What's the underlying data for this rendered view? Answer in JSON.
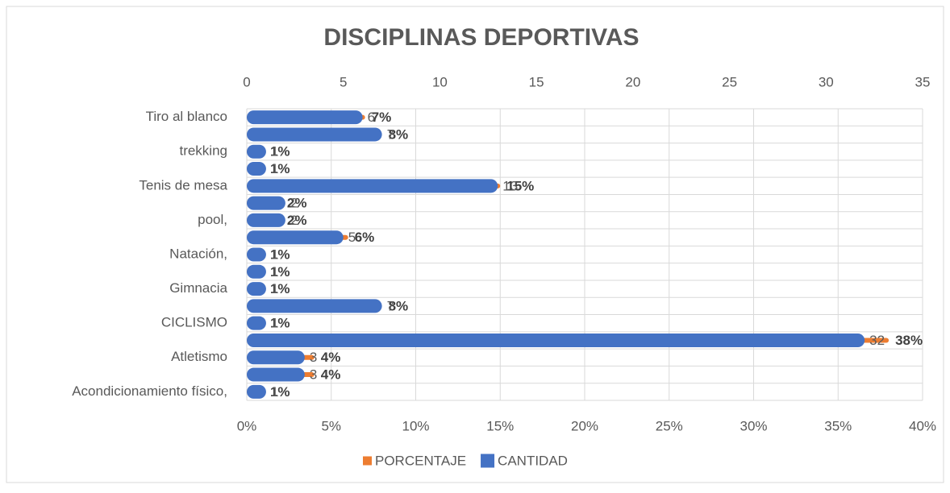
{
  "chart_data": {
    "type": "bar",
    "orientation": "horizontal",
    "title": "DISCIPLINAS DEPORTIVAS",
    "categories": [
      "Tiro al blanco",
      null,
      "trekking",
      null,
      "Tenis de mesa",
      null,
      "pool,",
      null,
      "Natación,",
      null,
      "Gimnacia",
      null,
      "CICLISMO",
      null,
      "Atletismo",
      null,
      "Acondicionamiento físico,"
    ],
    "series": [
      {
        "name": "PORCENTAJE",
        "color": "#ed7d31",
        "axis": "x",
        "values": [
          7,
          8,
          1,
          1,
          15,
          2,
          2,
          6,
          1,
          1,
          1,
          8,
          1,
          38,
          4,
          4,
          1
        ],
        "value_labels": [
          "7%",
          "8%",
          "1%",
          "1%",
          "15%",
          "2%",
          "2%",
          "6%",
          "1%",
          "1%",
          "1%",
          "8%",
          "1%",
          "38%",
          "4%",
          "4%",
          "1%"
        ]
      },
      {
        "name": "CANTIDAD",
        "color": "#4472c4",
        "axis": "x2",
        "values": [
          6,
          7,
          1,
          1,
          13,
          2,
          2,
          5,
          1,
          1,
          1,
          7,
          1,
          32,
          3,
          3,
          1
        ]
      }
    ],
    "xlim": [
      0,
      40
    ],
    "xticks": [
      {
        "value": 0,
        "label": "0%"
      },
      {
        "value": 5,
        "label": "5%"
      },
      {
        "value": 10,
        "label": "10%"
      },
      {
        "value": 15,
        "label": "15%"
      },
      {
        "value": 20,
        "label": "20%"
      },
      {
        "value": 25,
        "label": "25%"
      },
      {
        "value": 30,
        "label": "30%"
      },
      {
        "value": 35,
        "label": "35%"
      },
      {
        "value": 40,
        "label": "40%"
      }
    ],
    "x2lim": [
      0,
      35
    ],
    "x2ticks": [
      0,
      5,
      10,
      15,
      20,
      25,
      30,
      35
    ],
    "grid": true,
    "legend": "bottom"
  }
}
